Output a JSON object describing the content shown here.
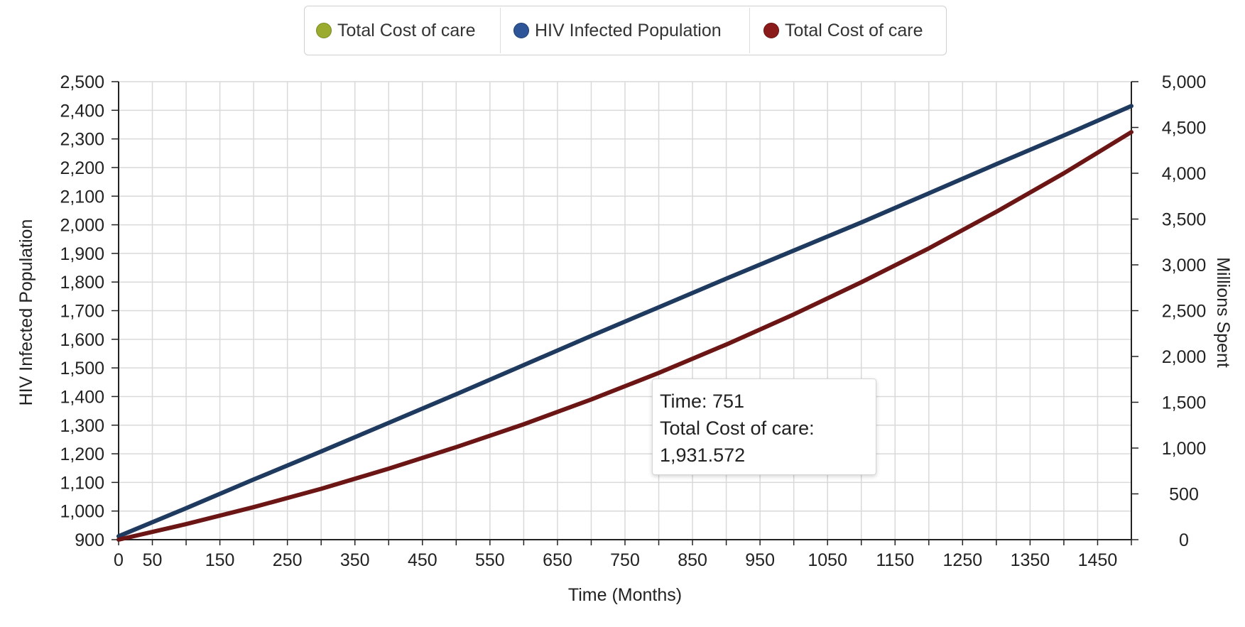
{
  "legend": [
    {
      "label": "Total Cost of care",
      "color": "#9aab2f"
    },
    {
      "label": "HIV Infected Population",
      "color": "#2e5597"
    },
    {
      "label": "Total Cost of care",
      "color": "#8b1a1a"
    }
  ],
  "tooltip": {
    "line1": "Time: 751",
    "line2": "Total Cost of care:",
    "line3": "1,931.572"
  },
  "chart_data": {
    "type": "line",
    "xlabel": "Time (Months)",
    "ylabel_left": "HIV Infected Population",
    "ylabel_right": "Millions Spent",
    "xlim": [
      0,
      1500
    ],
    "ylim_left": [
      900,
      2500
    ],
    "ylim_right": [
      0,
      5000
    ],
    "grid": true,
    "legend_position": "top-center",
    "x_ticks": [
      "0",
      "50",
      "150",
      "250",
      "350",
      "450",
      "550",
      "650",
      "750",
      "850",
      "950",
      "1050",
      "1150",
      "1250",
      "1350",
      "1450"
    ],
    "y_left_ticks": [
      "900",
      "1,000",
      "1,100",
      "1,200",
      "1,300",
      "1,400",
      "1,500",
      "1,600",
      "1,700",
      "1,800",
      "1,900",
      "2,000",
      "2,100",
      "2,200",
      "2,300",
      "2,400",
      "2,500"
    ],
    "y_right_ticks": [
      "0",
      "500",
      "1,000",
      "1,500",
      "2,000",
      "2,500",
      "3,000",
      "3,500",
      "4,000",
      "4,500",
      "5,000"
    ],
    "series": [
      {
        "name": "HIV Infected Population",
        "axis": "left",
        "color": "#1f3a5f",
        "x": [
          0,
          100,
          200,
          300,
          400,
          500,
          600,
          700,
          800,
          900,
          1000,
          1100,
          1200,
          1300,
          1400,
          1500
        ],
        "y": [
          912,
          1010,
          1110,
          1208,
          1308,
          1408,
          1510,
          1612,
          1712,
          1812,
          1910,
          2008,
          2110,
          2212,
          2312,
          2415
        ]
      },
      {
        "name": "Total Cost of care",
        "axis": "right",
        "color": "#6b1515",
        "x": [
          0,
          100,
          200,
          300,
          400,
          500,
          600,
          700,
          751,
          800,
          900,
          1000,
          1100,
          1200,
          1300,
          1400,
          1500
        ],
        "y": [
          0,
          170,
          355,
          555,
          775,
          1010,
          1260,
          1530,
          1931.572,
          1820,
          2130,
          2460,
          2810,
          3180,
          3580,
          4000,
          4450
        ]
      }
    ]
  }
}
